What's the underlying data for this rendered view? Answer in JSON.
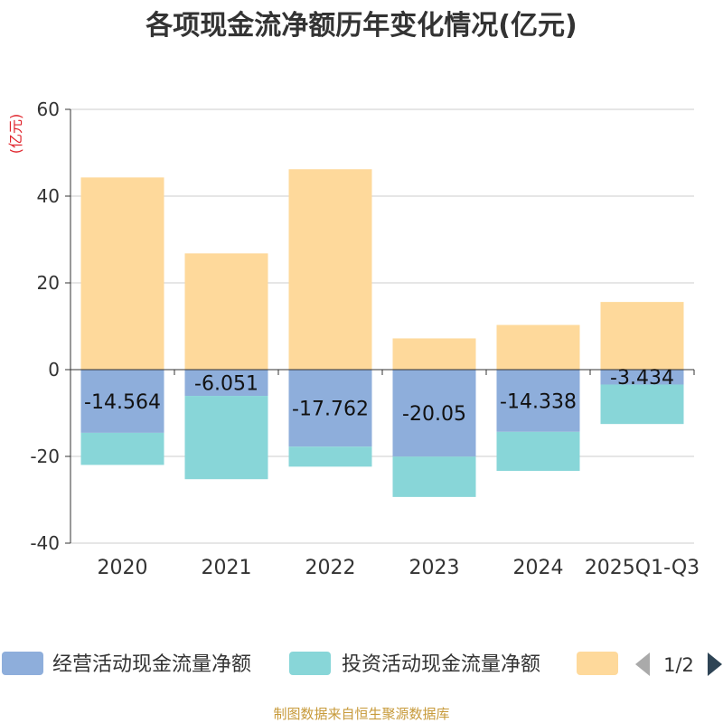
{
  "chart_data": {
    "type": "bar",
    "stacked": true,
    "title": "各项现金流净额历年变化情况(亿元)",
    "ylabel": "(亿元)",
    "ylim": [
      -40,
      60
    ],
    "yticks": [
      -40,
      -20,
      0,
      20,
      40,
      60
    ],
    "categories": [
      "2020",
      "2021",
      "2022",
      "2023",
      "2024",
      "2025Q1-Q3"
    ],
    "series": [
      {
        "name": "经营活动现金流量净额",
        "color": "#8eaedb",
        "values": [
          -14.564,
          -6.051,
          -17.762,
          -20.05,
          -14.338,
          -3.434
        ]
      },
      {
        "name": "投资活动现金流量净额",
        "color": "#88d6d8",
        "values": [
          -7.4,
          -19.2,
          -4.6,
          -9.3,
          -9.0,
          -9.1
        ]
      },
      {
        "name": "",
        "color": "#fed99b",
        "values": [
          44.3,
          26.8,
          46.2,
          7.2,
          10.3,
          15.6
        ]
      }
    ],
    "data_labels": [
      "-14.564",
      "-6.051",
      "-17.762",
      "-20.05",
      "-14.338",
      "-3.434"
    ],
    "legend": {
      "items": [
        "经营活动现金流量净额",
        "投资活动现金流量净额",
        ""
      ],
      "page": "1/2"
    },
    "source": "制图数据来自恒生聚源数据库"
  }
}
